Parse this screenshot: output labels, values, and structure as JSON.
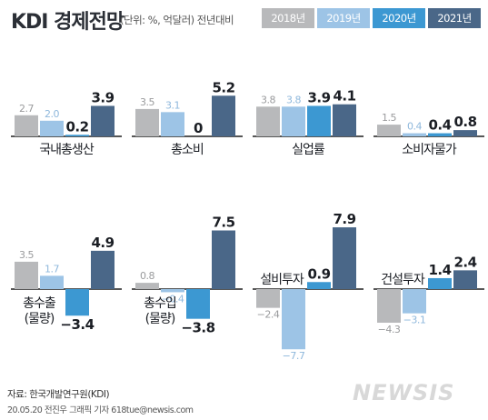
{
  "header": {
    "title": "KDI 경제전망",
    "subtitle": "(단위: %, 억달러) 전년대비"
  },
  "legend": [
    {
      "label": "2018년",
      "color": "#b8b9bb"
    },
    {
      "label": "2019년",
      "color": "#9dc4e6"
    },
    {
      "label": "2020년",
      "color": "#3c98d2"
    },
    {
      "label": "2021년",
      "color": "#4a6788"
    }
  ],
  "chart_data": [
    {
      "type": "bar",
      "title": "국내총생산",
      "categories": [
        "2018년",
        "2019년",
        "2020년",
        "2021년"
      ],
      "values": [
        2.7,
        2.0,
        0.2,
        3.9
      ],
      "labels": [
        "2.7",
        "2.0",
        "0.2",
        "3.9"
      ]
    },
    {
      "type": "bar",
      "title": "총소비",
      "categories": [
        "2018년",
        "2019년",
        "2020년",
        "2021년"
      ],
      "values": [
        3.5,
        3.1,
        0,
        5.2
      ],
      "labels": [
        "3.5",
        "3.1",
        "0",
        "5.2"
      ]
    },
    {
      "type": "bar",
      "title": "실업률",
      "categories": [
        "2018년",
        "2019년",
        "2020년",
        "2021년"
      ],
      "values": [
        3.8,
        3.8,
        3.9,
        4.1
      ],
      "labels": [
        "3.8",
        "3.8",
        "3.9",
        "4.1"
      ]
    },
    {
      "type": "bar",
      "title": "소비자물가",
      "categories": [
        "2018년",
        "2019년",
        "2020년",
        "2021년"
      ],
      "values": [
        1.5,
        0.4,
        0.4,
        0.8
      ],
      "labels": [
        "1.5",
        "0.4",
        "0.4",
        "0.8"
      ]
    },
    {
      "type": "bar",
      "title": "총수출\n(물량)",
      "categories": [
        "2018년",
        "2019년",
        "2020년",
        "2021년"
      ],
      "values": [
        3.5,
        1.7,
        -3.4,
        4.9
      ],
      "labels": [
        "3.5",
        "1.7",
        "−3.4",
        "4.9"
      ]
    },
    {
      "type": "bar",
      "title": "총수입\n(물량)",
      "categories": [
        "2018년",
        "2019년",
        "2020년",
        "2021년"
      ],
      "values": [
        0.8,
        -0.4,
        -3.8,
        7.5
      ],
      "labels": [
        "0.8",
        "−0.4",
        "−3.8",
        "7.5"
      ]
    },
    {
      "type": "bar",
      "title": "설비투자",
      "categories": [
        "2018년",
        "2019년",
        "2020년",
        "2021년"
      ],
      "values": [
        -2.4,
        -7.7,
        0.9,
        7.9
      ],
      "labels": [
        "−2.4",
        "−7.7",
        "0.9",
        "7.9"
      ]
    },
    {
      "type": "bar",
      "title": "건설투자",
      "categories": [
        "2018년",
        "2019년",
        "2020년",
        "2021년"
      ],
      "values": [
        -4.3,
        -3.1,
        1.4,
        2.4
      ],
      "labels": [
        "−4.3",
        "−3.1",
        "1.4",
        "2.4"
      ]
    }
  ],
  "footer": {
    "source": "자료: 한국개발연구원(KDI)",
    "credit": "20.05.20 전진우 그래픽 기자 618tue@newsis.com",
    "logo": "NEWSIS"
  }
}
